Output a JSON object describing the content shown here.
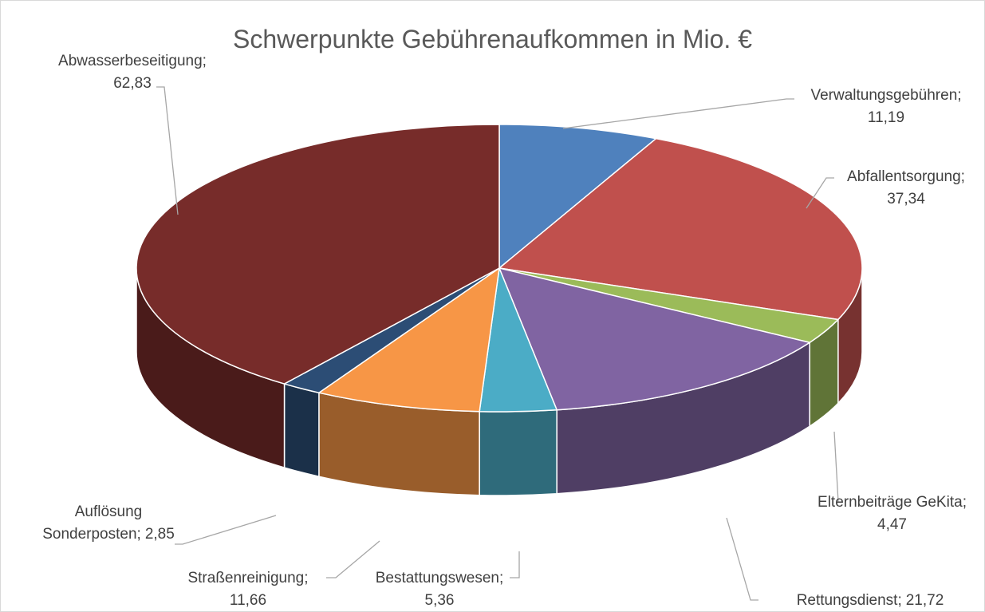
{
  "chart_data": {
    "type": "pie3d",
    "title": "Schwerpunkte Gebührenaufkommen in Mio. €",
    "categories": [
      "Verwaltungsgebühren",
      "Abfallentsorgung",
      "Elternbeiträge GeKita",
      "Rettungsdienst",
      "Bestattungswesen",
      "Straßenreinigung",
      "Auflösung Sonderposten",
      "Abwasserbeseitigung"
    ],
    "values": [
      11.19,
      37.34,
      4.47,
      21.72,
      5.36,
      11.66,
      2.85,
      62.83
    ],
    "value_labels": [
      "11,19",
      "37,34",
      "4,47",
      "21,72",
      "5,36",
      "11,66",
      "2,85",
      "62,83"
    ],
    "label_separator": ";",
    "colors": [
      "#4f81bd",
      "#c0504d",
      "#9bbb59",
      "#8064a2",
      "#4bacc6",
      "#f79646",
      "#2c4d75",
      "#772c2a"
    ]
  }
}
